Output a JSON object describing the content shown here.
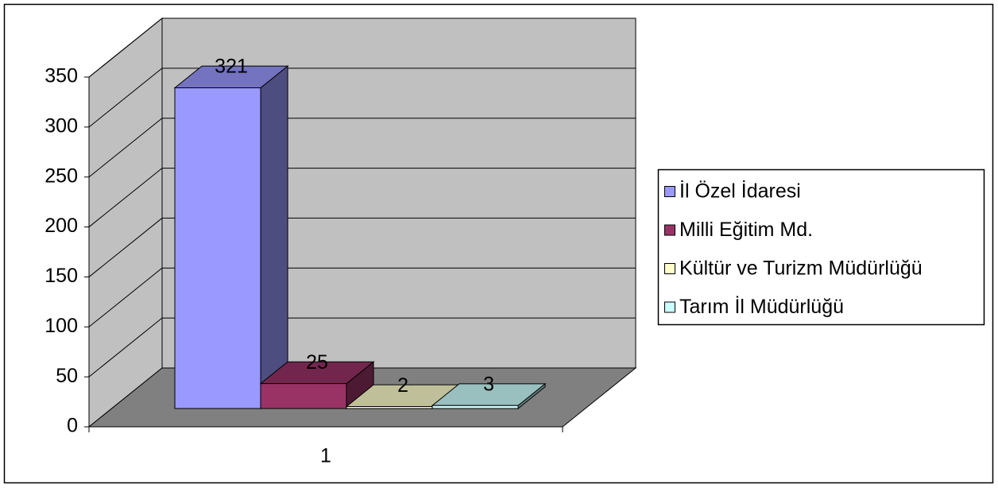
{
  "chart_data": {
    "type": "bar3d",
    "categories": [
      "1"
    ],
    "series": [
      {
        "name": "İl Özel İdaresi",
        "color": "#9999ff",
        "values": [
          321
        ]
      },
      {
        "name": "Milli Eğitim Md.",
        "color": "#993366",
        "values": [
          25
        ]
      },
      {
        "name": "Kültür ve Turizm Müdürlüğü",
        "color": "#ffffcc",
        "values": [
          2
        ]
      },
      {
        "name": "Tarım İl Müdürlüğü",
        "color": "#ccffff",
        "values": [
          3
        ]
      }
    ],
    "ylim": [
      0,
      350
    ],
    "yticks": [
      0,
      50,
      100,
      150,
      200,
      250,
      300,
      350
    ],
    "grid": true,
    "legend": "right"
  }
}
